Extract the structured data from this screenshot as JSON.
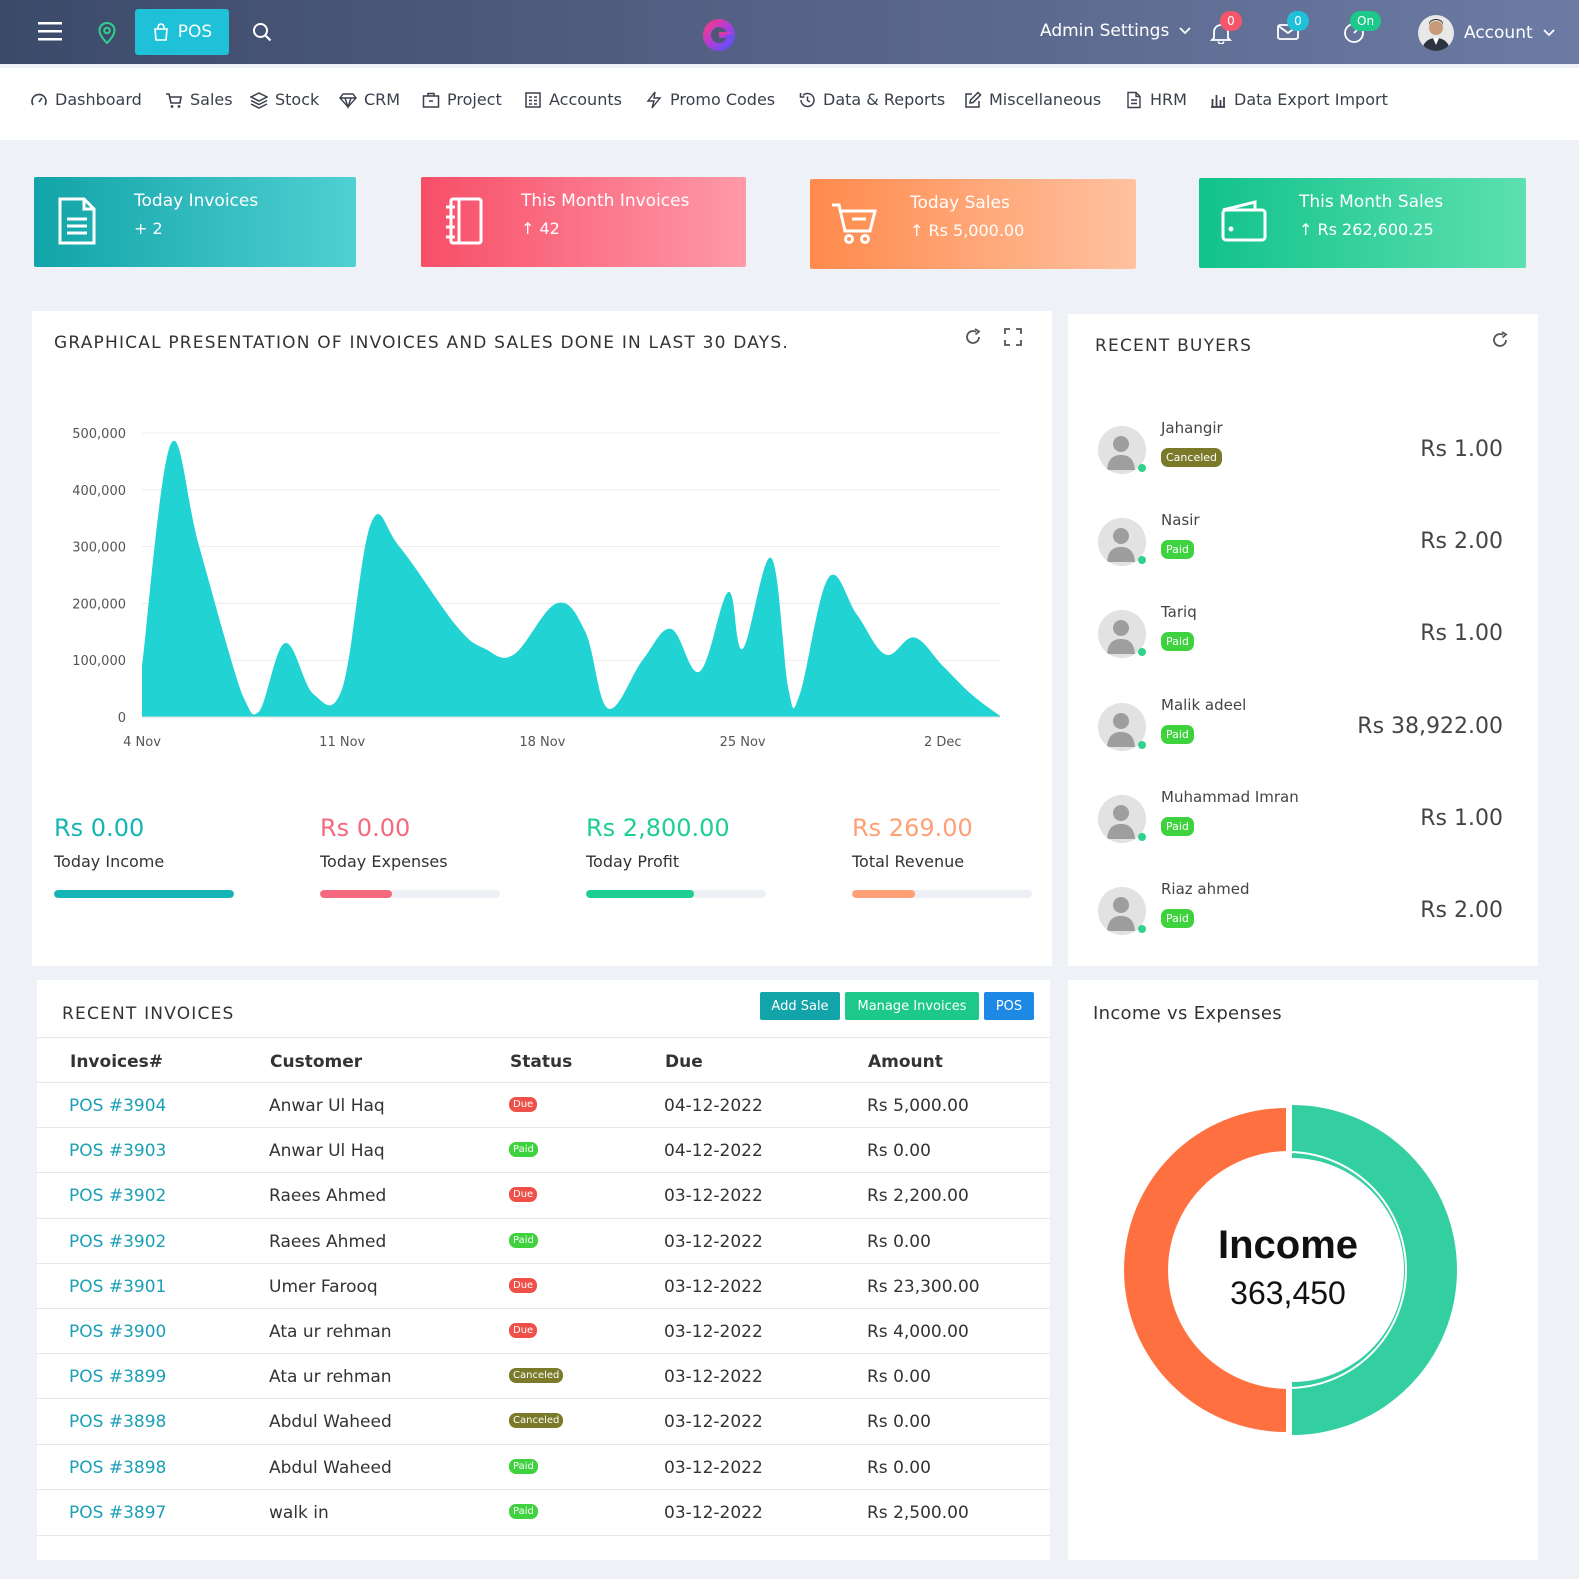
{
  "topbar": {
    "pos_label": "POS",
    "admin_settings": "Admin Settings",
    "notifications_count": "0",
    "messages_count": "0",
    "status_label": "On",
    "account_label": "Account"
  },
  "nav": [
    {
      "label": "Dashboard",
      "icon": "dashboard-icon"
    },
    {
      "label": "Sales",
      "icon": "cart-icon"
    },
    {
      "label": "Stock",
      "icon": "layers-icon"
    },
    {
      "label": "CRM",
      "icon": "diamond-icon"
    },
    {
      "label": "Project",
      "icon": "briefcase-icon"
    },
    {
      "label": "Accounts",
      "icon": "calculator-icon"
    },
    {
      "label": "Promo Codes",
      "icon": "bolt-icon"
    },
    {
      "label": "Data & Reports",
      "icon": "history-icon"
    },
    {
      "label": "Miscellaneous",
      "icon": "edit-icon"
    },
    {
      "label": "HRM",
      "icon": "file-icon"
    },
    {
      "label": "Data Export Import",
      "icon": "bar-chart-icon"
    }
  ],
  "stats": [
    {
      "title": "Today Invoices",
      "value": "+ 2",
      "color_from": "#12a4a8",
      "color_to": "#4fd0d2"
    },
    {
      "title": "This Month Invoices",
      "value": "↑ 42",
      "color_from": "#f74e68",
      "color_to": "#ff99a8"
    },
    {
      "title": "Today Sales",
      "value": "↑ Rs 5,000.00",
      "color_from": "#ff8a4c",
      "color_to": "#ffc1a0"
    },
    {
      "title": "This Month Sales",
      "value": "↑  Rs 262,600.25",
      "color_from": "#11c28a",
      "color_to": "#5de0b0"
    }
  ],
  "chart_panel": {
    "title": "GRAPHICAL PRESENTATION OF INVOICES AND SALES DONE IN LAST 30 DAYS."
  },
  "chart_data": {
    "type": "area",
    "color": "#22d3d3",
    "ylim": [
      0,
      500000
    ],
    "y_ticks": [
      "0",
      "100,000",
      "200,000",
      "300,000",
      "400,000",
      "500,000"
    ],
    "x_ticks": [
      "4 Nov",
      "11 Nov",
      "18 Nov",
      "25 Nov",
      "2 Dec"
    ],
    "x_start_day": 0,
    "x_end_day": 30,
    "points": [
      [
        0,
        90000
      ],
      [
        1,
        480000
      ],
      [
        2,
        300000
      ],
      [
        3.5,
        40000
      ],
      [
        4.1,
        10000
      ],
      [
        5,
        130000
      ],
      [
        6,
        40000
      ],
      [
        7,
        50000
      ],
      [
        8,
        340000
      ],
      [
        9,
        300000
      ],
      [
        11,
        160000
      ],
      [
        12,
        120000
      ],
      [
        13,
        110000
      ],
      [
        14.5,
        200000
      ],
      [
        15.5,
        150000
      ],
      [
        16.3,
        15000
      ],
      [
        17.5,
        100000
      ],
      [
        18.5,
        155000
      ],
      [
        19.5,
        80000
      ],
      [
        20.5,
        220000
      ],
      [
        21,
        120000
      ],
      [
        22,
        280000
      ],
      [
        22.6,
        50000
      ],
      [
        23,
        40000
      ],
      [
        24,
        245000
      ],
      [
        25,
        180000
      ],
      [
        26,
        110000
      ],
      [
        27,
        140000
      ],
      [
        28,
        90000
      ],
      [
        29,
        40000
      ],
      [
        30,
        2000
      ]
    ]
  },
  "summary": [
    {
      "value": "Rs 0.00",
      "label": "Today Income",
      "color": "#16b5b5",
      "fill_percent": 100
    },
    {
      "value": "Rs 0.00",
      "label": "Today Expenses",
      "color": "#f5697e",
      "fill_percent": 40
    },
    {
      "value": "Rs 2,800.00",
      "label": "Today Profit",
      "color": "#1dcf91",
      "fill_percent": 60
    },
    {
      "value": "Rs 269.00",
      "label": "Total Revenue",
      "color": "#ffa074",
      "fill_percent": 35
    }
  ],
  "buyers_panel": {
    "title": "RECENT BUYERS",
    "buyers": [
      {
        "name": "Jahangir",
        "status": "Canceled",
        "amount": "Rs 1.00"
      },
      {
        "name": "Nasir",
        "status": "Paid",
        "amount": "Rs 2.00"
      },
      {
        "name": "Tariq",
        "status": "Paid",
        "amount": "Rs 1.00"
      },
      {
        "name": "Malik adeel",
        "status": "Paid",
        "amount": "Rs 38,922.00"
      },
      {
        "name": "Muhammad Imran",
        "status": "Paid",
        "amount": "Rs 1.00"
      },
      {
        "name": "Riaz ahmed",
        "status": "Paid",
        "amount": "Rs 2.00"
      }
    ]
  },
  "invoices_panel": {
    "title": "RECENT INVOICES",
    "buttons": {
      "add_sale": "Add Sale",
      "manage_invoices": "Manage Invoices",
      "pos": "POS"
    },
    "columns": [
      "Invoices#",
      "Customer",
      "Status",
      "Due",
      "Amount"
    ],
    "rows": [
      {
        "invoice": "POS #3904",
        "customer": "Anwar Ul Haq",
        "status": "Due",
        "due": "04-12-2022",
        "amount": "Rs 5,000.00"
      },
      {
        "invoice": "POS #3903",
        "customer": "Anwar Ul Haq",
        "status": "Paid",
        "due": "04-12-2022",
        "amount": "Rs 0.00"
      },
      {
        "invoice": "POS #3902",
        "customer": "Raees Ahmed",
        "status": "Due",
        "due": "03-12-2022",
        "amount": "Rs 2,200.00"
      },
      {
        "invoice": "POS #3902",
        "customer": "Raees Ahmed",
        "status": "Paid",
        "due": "03-12-2022",
        "amount": "Rs 0.00"
      },
      {
        "invoice": "POS #3901",
        "customer": "Umer Farooq",
        "status": "Due",
        "due": "03-12-2022",
        "amount": "Rs 23,300.00"
      },
      {
        "invoice": "POS #3900",
        "customer": "Ata ur rehman",
        "status": "Due",
        "due": "03-12-2022",
        "amount": "Rs 4,000.00"
      },
      {
        "invoice": "POS #3899",
        "customer": "Ata ur rehman",
        "status": "Canceled",
        "due": "03-12-2022",
        "amount": "Rs 0.00"
      },
      {
        "invoice": "POS #3898",
        "customer": "Abdul Waheed",
        "status": "Canceled",
        "due": "03-12-2022",
        "amount": "Rs 0.00"
      },
      {
        "invoice": "POS #3898",
        "customer": "Abdul Waheed",
        "status": "Paid",
        "due": "03-12-2022",
        "amount": "Rs 0.00"
      },
      {
        "invoice": "POS #3897",
        "customer": "walk in",
        "status": "Paid",
        "due": "03-12-2022",
        "amount": "Rs 2,500.00"
      }
    ]
  },
  "income_panel": {
    "title": "Income vs Expenses",
    "center_label": "Income",
    "center_value": "363,450",
    "income_color": "#34cfa0",
    "expense_color": "#ff7040",
    "income_share": 0.5,
    "expense_share": 0.5
  }
}
